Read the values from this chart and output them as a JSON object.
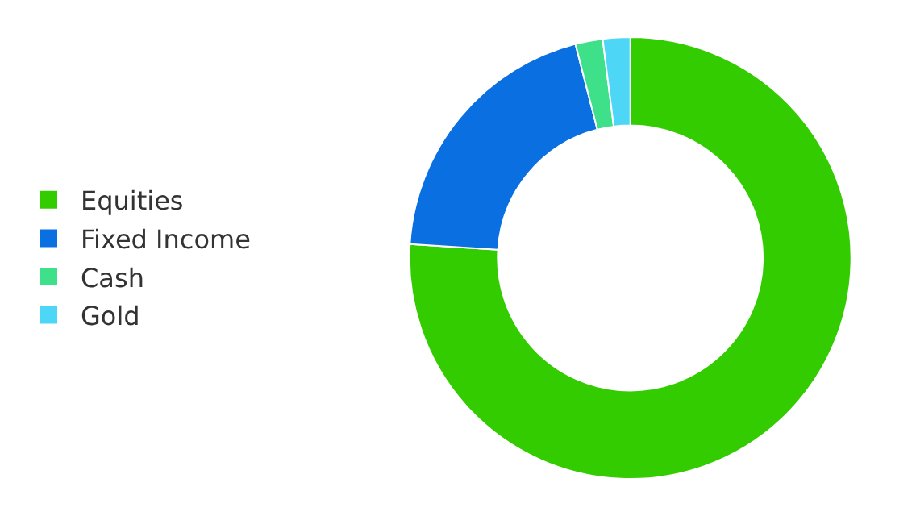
{
  "chart_data": {
    "type": "donut",
    "categories": [
      "Equities",
      "Fixed Income",
      "Cash",
      "Gold"
    ],
    "values": [
      76,
      20,
      2,
      2
    ],
    "colors": [
      "#33cc00",
      "#0a6fe0",
      "#3ee089",
      "#4dd6f5"
    ],
    "legend": "left"
  }
}
